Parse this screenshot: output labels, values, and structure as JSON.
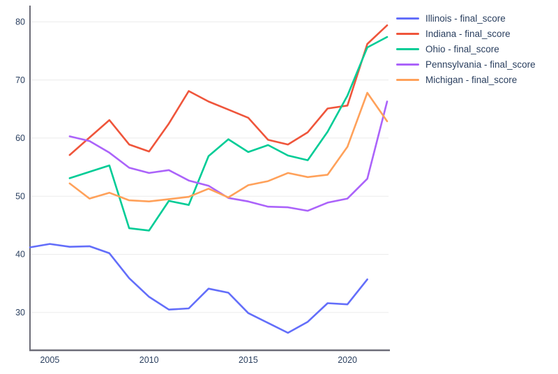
{
  "chart_data": {
    "type": "line",
    "title": "",
    "xlabel": "",
    "ylabel": "",
    "x_range": [
      2004,
      2022.07
    ],
    "y_range": [
      23.5,
      82.8
    ],
    "x_ticks": [
      2005,
      2010,
      2015,
      2020
    ],
    "y_ticks": [
      30,
      40,
      50,
      60,
      70,
      80
    ],
    "grid": "horizontal-only",
    "legend_position": "outside-top-right",
    "colors": {
      "background": "#ffffff",
      "grid": "#ebebeb",
      "axis_line": "#6d6d78",
      "tick_text": "#2a3f5f",
      "legend_text": "#2a3f5f"
    },
    "series": [
      {
        "name": "Illinois - final_score",
        "color": "#636EFA",
        "x": [
          2004,
          2005,
          2006,
          2007,
          2008,
          2009,
          2010,
          2011,
          2012,
          2013,
          2014,
          2015,
          2016,
          2017,
          2018,
          2019,
          2020,
          2021
        ],
        "values": [
          41.2,
          41.8,
          41.3,
          41.4,
          40.2,
          35.9,
          32.7,
          30.5,
          30.7,
          34.1,
          33.4,
          29.9,
          28.2,
          26.5,
          28.4,
          31.6,
          31.4,
          35.7
        ]
      },
      {
        "name": "Indiana - final_score",
        "color": "#EF553B",
        "x": [
          2006,
          2007,
          2008,
          2009,
          2010,
          2011,
          2012,
          2013,
          2014,
          2015,
          2016,
          2017,
          2018,
          2019,
          2020,
          2021,
          2022
        ],
        "values": [
          57.1,
          60.1,
          63.1,
          58.9,
          57.7,
          62.5,
          68.1,
          66.3,
          64.9,
          63.5,
          59.7,
          58.9,
          61.0,
          65.1,
          65.6,
          76.2,
          79.4
        ]
      },
      {
        "name": "Ohio - final_score",
        "color": "#00CC96",
        "x": [
          2006,
          2007,
          2008,
          2009,
          2010,
          2011,
          2012,
          2013,
          2014,
          2015,
          2016,
          2017,
          2018,
          2019,
          2020,
          2021,
          2022
        ],
        "values": [
          53.1,
          54.2,
          55.3,
          44.5,
          44.1,
          49.2,
          48.5,
          56.9,
          59.8,
          57.6,
          58.8,
          57.0,
          56.2,
          61.1,
          67.3,
          75.6,
          77.4
        ]
      },
      {
        "name": "Pennsylvania - final_score",
        "color": "#AB63FA",
        "x": [
          2006,
          2007,
          2008,
          2009,
          2010,
          2011,
          2012,
          2013,
          2014,
          2015,
          2016,
          2017,
          2018,
          2019,
          2020,
          2021,
          2022
        ],
        "values": [
          60.3,
          59.5,
          57.5,
          54.9,
          54.0,
          54.5,
          52.7,
          51.8,
          49.7,
          49.1,
          48.2,
          48.1,
          47.5,
          48.9,
          49.6,
          53.0,
          66.3
        ]
      },
      {
        "name": "Michigan - final_score",
        "color": "#FFA15A",
        "x": [
          2006,
          2007,
          2008,
          2009,
          2010,
          2011,
          2012,
          2013,
          2014,
          2015,
          2016,
          2017,
          2018,
          2019,
          2020,
          2021,
          2022
        ],
        "values": [
          52.2,
          49.6,
          50.6,
          49.3,
          49.1,
          49.5,
          49.9,
          51.3,
          49.8,
          51.9,
          52.6,
          54.0,
          53.3,
          53.7,
          58.5,
          67.8,
          62.9
        ]
      }
    ]
  }
}
